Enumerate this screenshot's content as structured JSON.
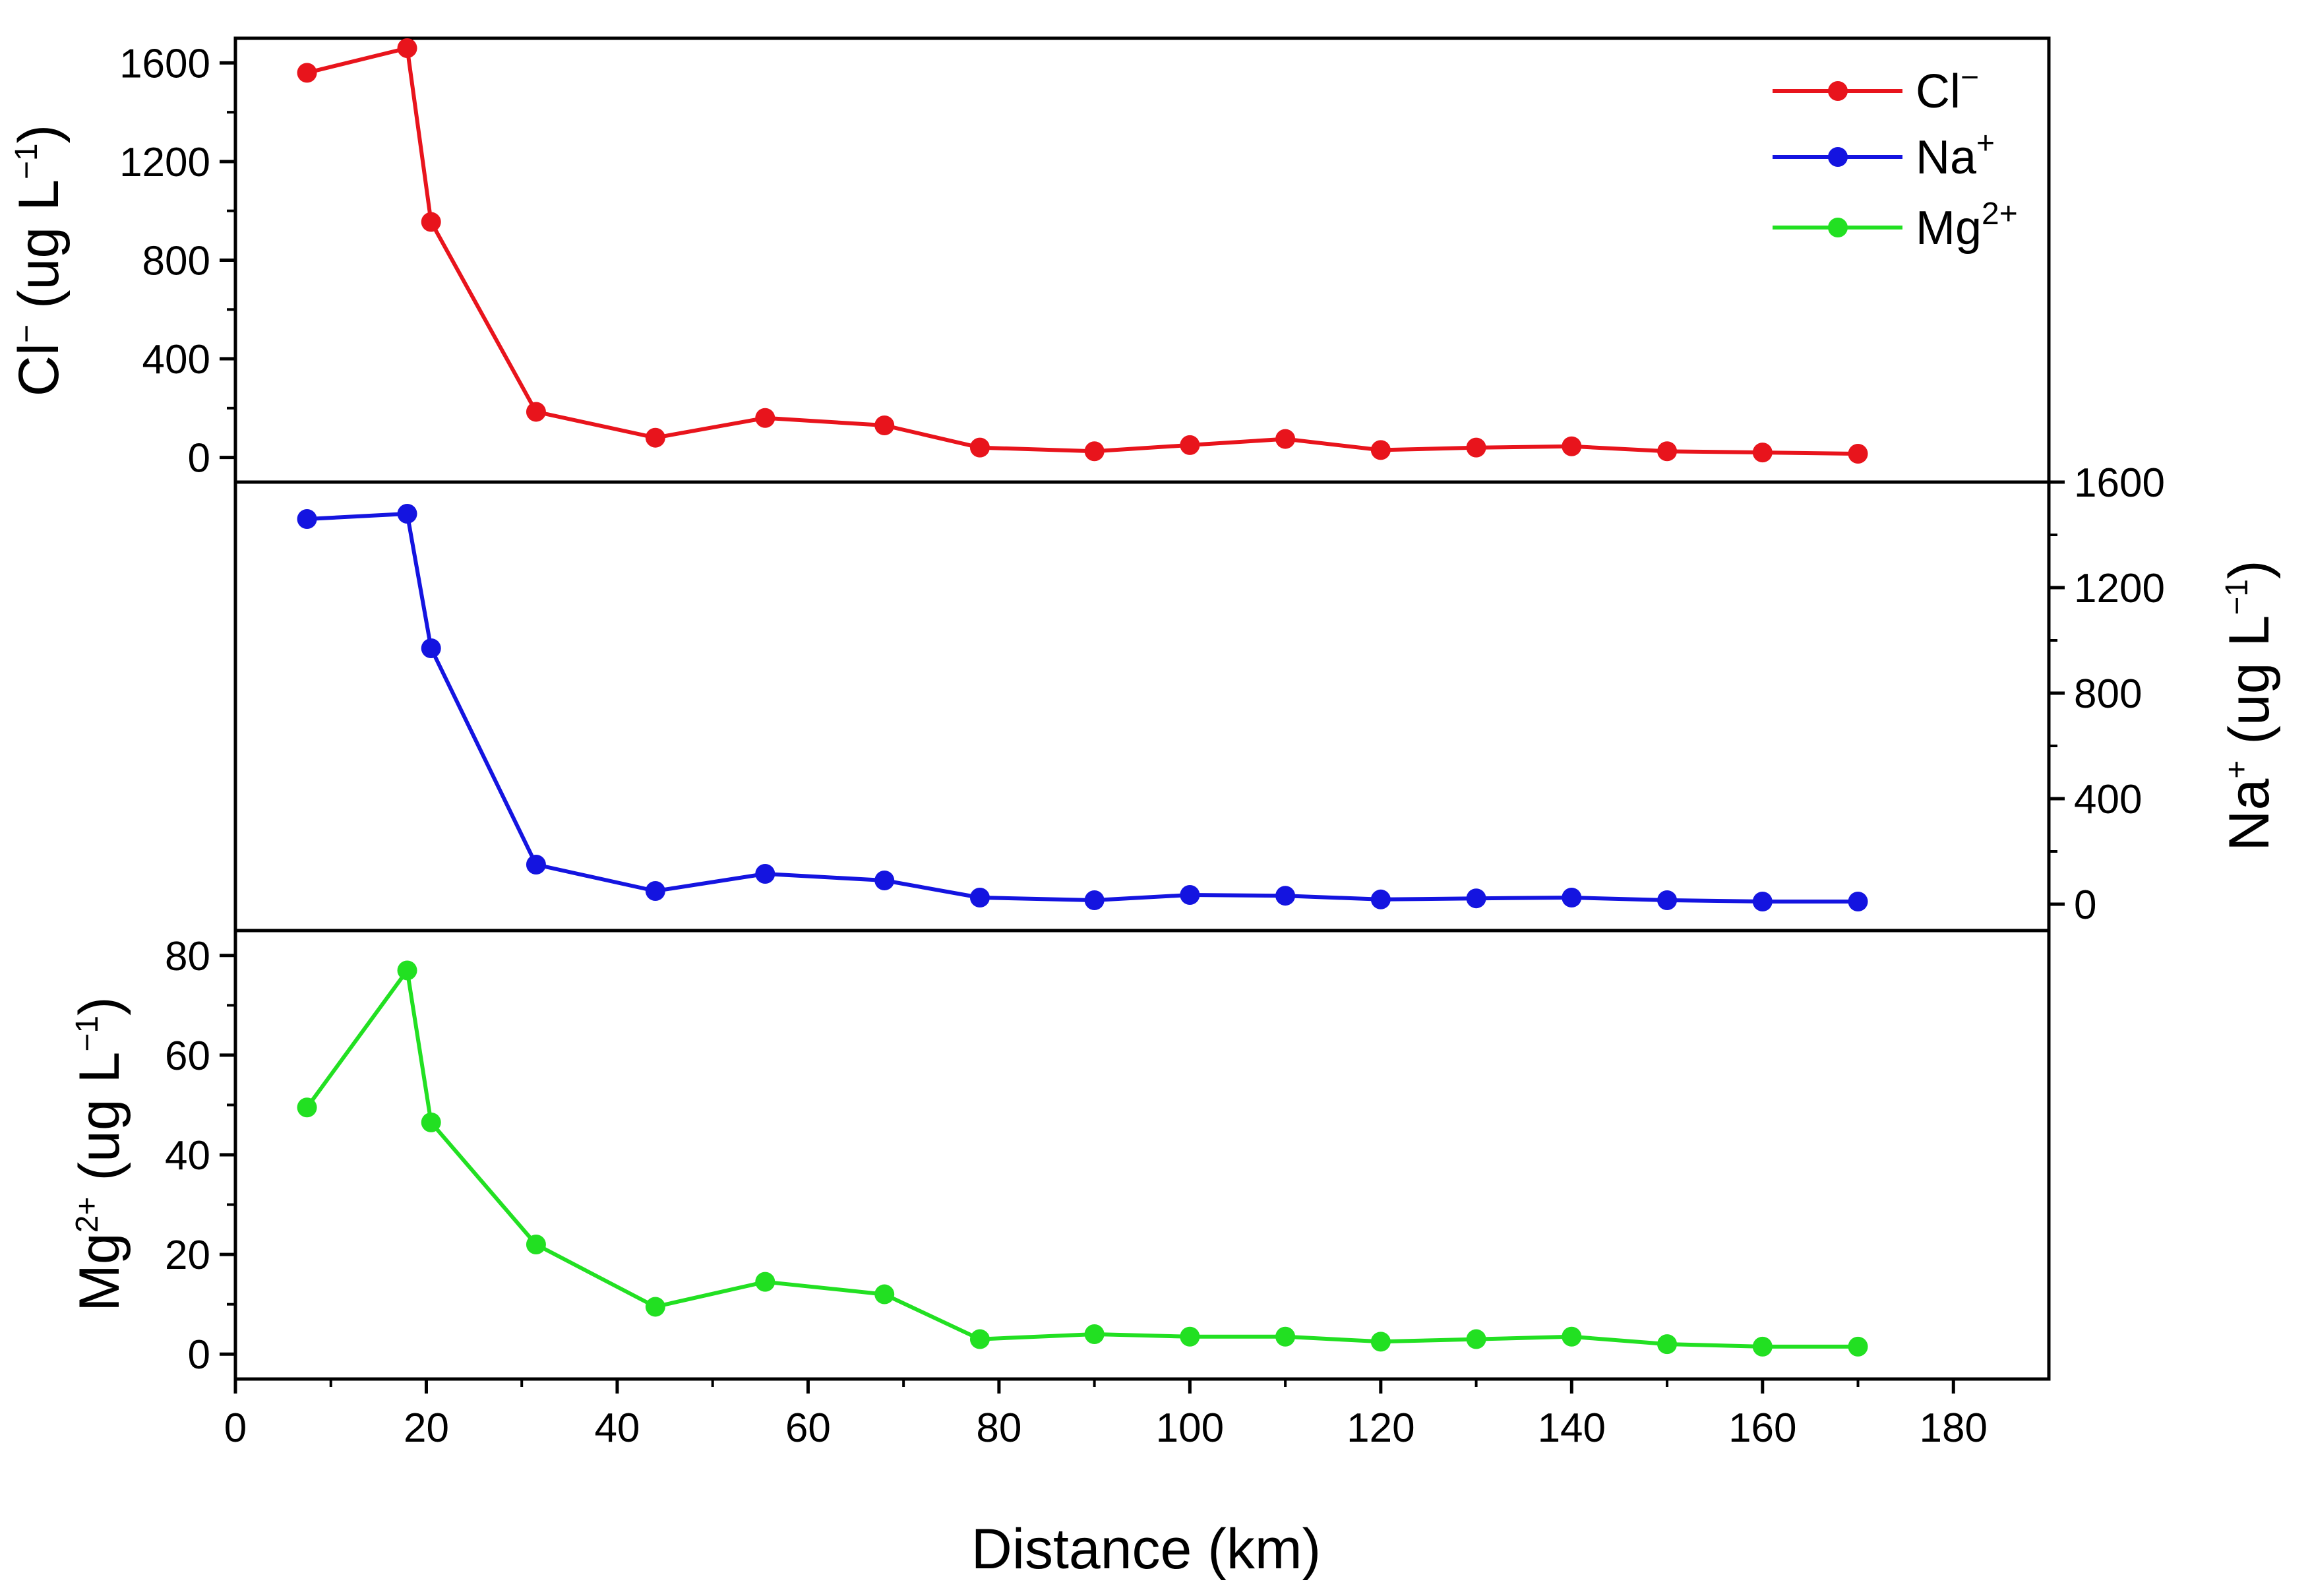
{
  "chart_data": {
    "type": "line",
    "layout": "three vertically stacked panels sharing the x axis",
    "x": [
      7.5,
      18,
      20.5,
      31.5,
      44,
      55.5,
      68,
      78,
      90,
      100,
      110,
      120,
      130,
      140,
      150,
      160,
      170
    ],
    "xlabel": "Distance (km)",
    "xlim": [
      0,
      190
    ],
    "xticks": [
      0,
      20,
      40,
      60,
      80,
      100,
      120,
      140,
      160,
      180
    ],
    "legend": {
      "placement": "top-right",
      "entries": [
        {
          "base": "Cl",
          "sup": "−",
          "color": "#e8141c"
        },
        {
          "base": "Na",
          "sup": "+",
          "color": "#1414e0"
        },
        {
          "base": "Mg",
          "sup": "2+",
          "color": "#22e022"
        }
      ]
    },
    "panels": [
      {
        "id": "cl",
        "series_name": "Cl−",
        "color": "#e8141c",
        "axis_side": "left",
        "ylabel": {
          "base": "Cl",
          "sup": "−",
          "rest": " (ug L",
          "unit_sup": "−1",
          "close": ")"
        },
        "ylim": [
          -100,
          1700
        ],
        "yticks": [
          0,
          400,
          800,
          1200,
          1600
        ],
        "values": [
          1560,
          1660,
          955,
          185,
          80,
          160,
          130,
          40,
          25,
          50,
          75,
          30,
          40,
          45,
          25,
          20,
          15
        ]
      },
      {
        "id": "na",
        "series_name": "Na+",
        "color": "#1414e0",
        "axis_side": "right",
        "ylabel": {
          "base": "Na",
          "sup": "+",
          "rest": " (ug L",
          "unit_sup": "−1",
          "close": ")"
        },
        "ylim": [
          -100,
          1600
        ],
        "yticks": [
          0,
          400,
          800,
          1200,
          1600
        ],
        "values": [
          1460,
          1480,
          970,
          150,
          50,
          115,
          90,
          25,
          15,
          35,
          32,
          18,
          22,
          25,
          15,
          10,
          10
        ]
      },
      {
        "id": "mg",
        "series_name": "Mg2+",
        "color": "#22e022",
        "axis_side": "left",
        "ylabel": {
          "base": "Mg",
          "sup": "2+",
          "rest": " (ug L",
          "unit_sup": "−1",
          "close": ")"
        },
        "ylim": [
          -5,
          85
        ],
        "yticks": [
          0,
          20,
          40,
          60,
          80
        ],
        "values": [
          49.5,
          77,
          46.5,
          22,
          9.5,
          14.5,
          12,
          3,
          4,
          3.5,
          3.5,
          2.5,
          3,
          3.5,
          2,
          1.5,
          1.5
        ]
      }
    ]
  }
}
